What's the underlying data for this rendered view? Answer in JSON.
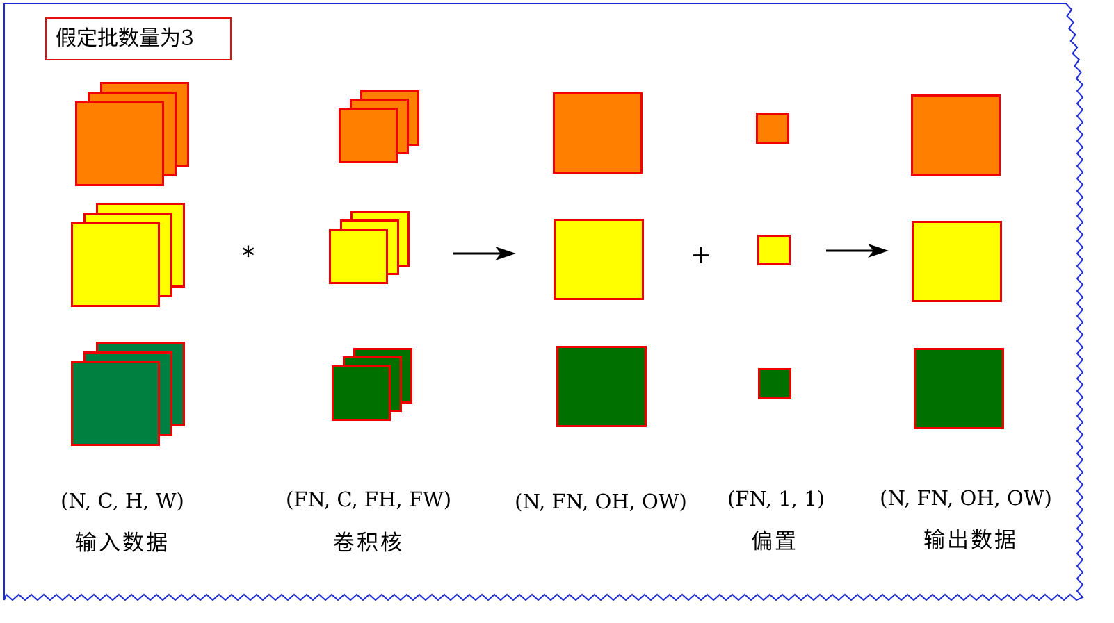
{
  "title": "假定批数量为3",
  "operators": {
    "convolution": "*",
    "add": "+"
  },
  "colors": {
    "orange": "#ff7f00",
    "yellow": "#ffff00",
    "teal_green": "#008040",
    "green": "#007000",
    "border": "#f00000",
    "frame": "#1c2bd6"
  },
  "columns": [
    {
      "shape": "(N, C, H, W)",
      "label": "输入数据"
    },
    {
      "shape": "(FN, C, FH, FW)",
      "label": "卷积核"
    },
    {
      "shape": "(N, FN, OH, OW)",
      "label": ""
    },
    {
      "shape": "(FN, 1, 1)",
      "label": "偏置"
    },
    {
      "shape": "(N, FN, OH, OW)",
      "label": "输出数据"
    }
  ]
}
